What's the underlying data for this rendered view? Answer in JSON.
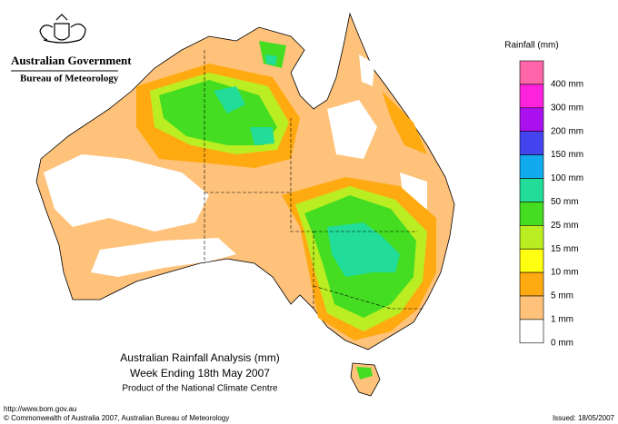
{
  "header": {
    "government": "Australian Government",
    "bureau": "Bureau of Meteorology"
  },
  "legend": {
    "title": "Rainfall (mm)",
    "items": [
      {
        "label": "400 mm",
        "color": "#ff66aa"
      },
      {
        "label": "300 mm",
        "color": "#ff22dd"
      },
      {
        "label": "200 mm",
        "color": "#aa11ee"
      },
      {
        "label": "150 mm",
        "color": "#4444ee"
      },
      {
        "label": "100 mm",
        "color": "#11aaee"
      },
      {
        "label": "50 mm",
        "color": "#22dd99"
      },
      {
        "label": "25 mm",
        "color": "#44dd22"
      },
      {
        "label": "15 mm",
        "color": "#bbee22"
      },
      {
        "label": "10 mm",
        "color": "#ffff11"
      },
      {
        "label": "5 mm",
        "color": "#ffaa11"
      },
      {
        "label": "1 mm",
        "color": "#ffc27a"
      },
      {
        "label": "0 mm",
        "color": "#ffffff"
      }
    ]
  },
  "caption": {
    "title": "Australian Rainfall Analysis (mm)",
    "period": "Week Ending 18th May 2007",
    "product": "Product of the National Climate Centre"
  },
  "footer": {
    "url": "http://www.bom.gov.au",
    "copyright": "© Commonwealth of Australia 2007, Australian Bureau of Meteorology",
    "issued": "Issued: 18/05/2007"
  }
}
